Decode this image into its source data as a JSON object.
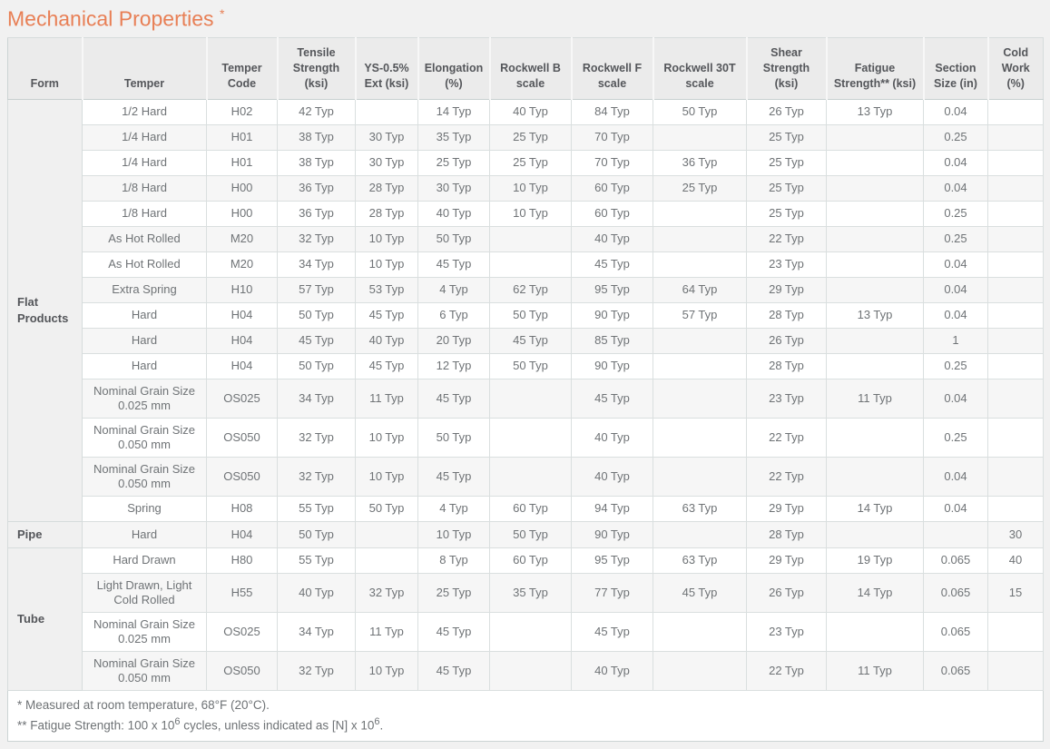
{
  "page": {
    "title": "Mechanical Properties",
    "title_asterisk": "*"
  },
  "table": {
    "columns": [
      "Form",
      "Temper",
      "Temper Code",
      "Tensile Strength (ksi)",
      "YS-0.5% Ext (ksi)",
      "Elongation (%)",
      "Rockwell B scale",
      "Rockwell F scale",
      "Rockwell 30T scale",
      "Shear Strength (ksi)",
      "Fatigue Strength** (ksi)",
      "Section Size (in)",
      "Cold Work (%)"
    ],
    "groups": [
      {
        "form": "Flat Products",
        "rows": [
          [
            "1/2 Hard",
            "H02",
            "42 Typ",
            "",
            "14 Typ",
            "40 Typ",
            "84 Typ",
            "50 Typ",
            "26 Typ",
            "13 Typ",
            "0.04",
            ""
          ],
          [
            "1/4 Hard",
            "H01",
            "38 Typ",
            "30 Typ",
            "35 Typ",
            "25 Typ",
            "70 Typ",
            "",
            "25 Typ",
            "",
            "0.25",
            ""
          ],
          [
            "1/4 Hard",
            "H01",
            "38 Typ",
            "30 Typ",
            "25 Typ",
            "25 Typ",
            "70 Typ",
            "36 Typ",
            "25 Typ",
            "",
            "0.04",
            ""
          ],
          [
            "1/8 Hard",
            "H00",
            "36 Typ",
            "28 Typ",
            "30 Typ",
            "10 Typ",
            "60 Typ",
            "25 Typ",
            "25 Typ",
            "",
            "0.04",
            ""
          ],
          [
            "1/8 Hard",
            "H00",
            "36 Typ",
            "28 Typ",
            "40 Typ",
            "10 Typ",
            "60 Typ",
            "",
            "25 Typ",
            "",
            "0.25",
            ""
          ],
          [
            "As Hot Rolled",
            "M20",
            "32 Typ",
            "10 Typ",
            "50 Typ",
            "",
            "40 Typ",
            "",
            "22 Typ",
            "",
            "0.25",
            ""
          ],
          [
            "As Hot Rolled",
            "M20",
            "34 Typ",
            "10 Typ",
            "45 Typ",
            "",
            "45 Typ",
            "",
            "23 Typ",
            "",
            "0.04",
            ""
          ],
          [
            "Extra Spring",
            "H10",
            "57 Typ",
            "53 Typ",
            "4 Typ",
            "62 Typ",
            "95 Typ",
            "64 Typ",
            "29 Typ",
            "",
            "0.04",
            ""
          ],
          [
            "Hard",
            "H04",
            "50 Typ",
            "45 Typ",
            "6 Typ",
            "50 Typ",
            "90 Typ",
            "57 Typ",
            "28 Typ",
            "13 Typ",
            "0.04",
            ""
          ],
          [
            "Hard",
            "H04",
            "45 Typ",
            "40 Typ",
            "20 Typ",
            "45 Typ",
            "85 Typ",
            "",
            "26 Typ",
            "",
            "1",
            ""
          ],
          [
            "Hard",
            "H04",
            "50 Typ",
            "45 Typ",
            "12 Typ",
            "50 Typ",
            "90 Typ",
            "",
            "28 Typ",
            "",
            "0.25",
            ""
          ],
          [
            "Nominal Grain Size 0.025 mm",
            "OS025",
            "34 Typ",
            "11 Typ",
            "45 Typ",
            "",
            "45 Typ",
            "",
            "23 Typ",
            "11 Typ",
            "0.04",
            ""
          ],
          [
            "Nominal Grain Size 0.050 mm",
            "OS050",
            "32 Typ",
            "10 Typ",
            "50 Typ",
            "",
            "40 Typ",
            "",
            "22 Typ",
            "",
            "0.25",
            ""
          ],
          [
            "Nominal Grain Size 0.050 mm",
            "OS050",
            "32 Typ",
            "10 Typ",
            "45 Typ",
            "",
            "40 Typ",
            "",
            "22 Typ",
            "",
            "0.04",
            ""
          ],
          [
            "Spring",
            "H08",
            "55 Typ",
            "50 Typ",
            "4 Typ",
            "60 Typ",
            "94 Typ",
            "63 Typ",
            "29 Typ",
            "14 Typ",
            "0.04",
            ""
          ]
        ]
      },
      {
        "form": "Pipe",
        "rows": [
          [
            "Hard",
            "H04",
            "50 Typ",
            "",
            "10 Typ",
            "50 Typ",
            "90 Typ",
            "",
            "28 Typ",
            "",
            "",
            "30"
          ]
        ]
      },
      {
        "form": "Tube",
        "rows": [
          [
            "Hard Drawn",
            "H80",
            "55 Typ",
            "",
            "8 Typ",
            "60 Typ",
            "95 Typ",
            "63 Typ",
            "29 Typ",
            "19 Typ",
            "0.065",
            "40"
          ],
          [
            "Light Drawn, Light Cold Rolled",
            "H55",
            "40 Typ",
            "32 Typ",
            "25 Typ",
            "35 Typ",
            "77 Typ",
            "45 Typ",
            "26 Typ",
            "14 Typ",
            "0.065",
            "15"
          ],
          [
            "Nominal Grain Size 0.025 mm",
            "OS025",
            "34 Typ",
            "11 Typ",
            "45 Typ",
            "",
            "45 Typ",
            "",
            "23 Typ",
            "",
            "0.065",
            ""
          ],
          [
            "Nominal Grain Size 0.050 mm",
            "OS050",
            "32 Typ",
            "10 Typ",
            "45 Typ",
            "",
            "40 Typ",
            "",
            "22 Typ",
            "11 Typ",
            "0.065",
            ""
          ]
        ]
      }
    ]
  },
  "footnotes": {
    "line1": "* Measured at room temperature, 68°F (20°C).",
    "line2_pre": "** Fatigue Strength: 100 x 10",
    "line2_sup1": "6",
    "line2_mid": " cycles, unless indicated as [N] x 10",
    "line2_sup2": "6",
    "line2_post": "."
  }
}
